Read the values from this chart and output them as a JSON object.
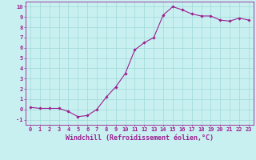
{
  "x": [
    0,
    1,
    2,
    3,
    4,
    5,
    6,
    7,
    8,
    9,
    10,
    11,
    12,
    13,
    14,
    15,
    16,
    17,
    18,
    19,
    20,
    21,
    22,
    23
  ],
  "y": [
    0.2,
    0.1,
    0.1,
    0.1,
    -0.2,
    -0.7,
    -0.6,
    0.0,
    1.2,
    2.2,
    3.5,
    5.8,
    6.5,
    7.0,
    9.2,
    10.0,
    9.7,
    9.3,
    9.1,
    9.1,
    8.7,
    8.6,
    8.9,
    8.7
  ],
  "line_color": "#9b2090",
  "marker": "D",
  "marker_size": 1.8,
  "line_width": 0.8,
  "bg_color": "#c8f0f0",
  "grid_color": "#a0d8d8",
  "xlabel": "Windchill (Refroidissement éolien,°C)",
  "xlim": [
    -0.5,
    23.5
  ],
  "ylim": [
    -1.5,
    10.5
  ],
  "yticks": [
    -1,
    0,
    1,
    2,
    3,
    4,
    5,
    6,
    7,
    8,
    9,
    10
  ],
  "xticks": [
    0,
    1,
    2,
    3,
    4,
    5,
    6,
    7,
    8,
    9,
    10,
    11,
    12,
    13,
    14,
    15,
    16,
    17,
    18,
    19,
    20,
    21,
    22,
    23
  ],
  "tick_label_fontsize": 5.0,
  "xlabel_fontsize": 6.0,
  "axis_color": "#9b2090"
}
